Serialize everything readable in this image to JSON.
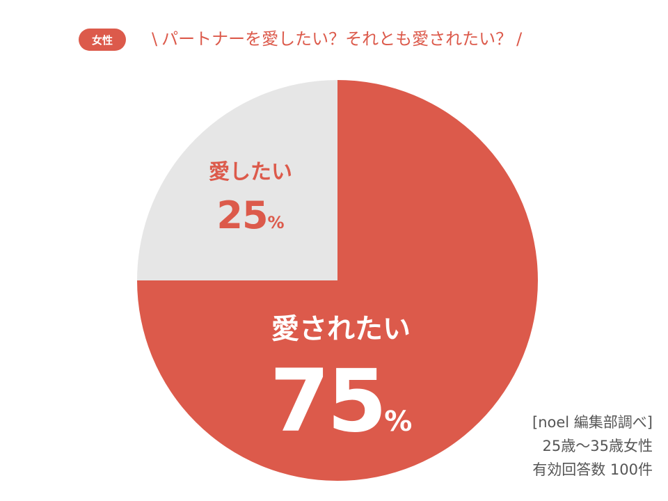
{
  "header": {
    "badge": "女性",
    "slash_open": "\\",
    "slash_close": "/",
    "title": "パートナーを愛したい？それとも愛されたい？"
  },
  "chart_data": {
    "type": "pie",
    "start_angle_deg": 0,
    "direction": "clockwise",
    "slices": [
      {
        "label": "愛されたい",
        "value": 75,
        "display": "75",
        "unit": "%",
        "color": "#dc5a4b"
      },
      {
        "label": "愛したい",
        "value": 25,
        "display": "25",
        "unit": "%",
        "color": "#e6e6e6"
      }
    ]
  },
  "source": {
    "line1": "[noel 編集部調べ]",
    "line2": "25歳〜35歳女性",
    "line3": "有効回答数 100件"
  },
  "colors": {
    "accent": "#dc5a4b",
    "secondary": "#e6e6e6",
    "text_muted": "#555555"
  }
}
